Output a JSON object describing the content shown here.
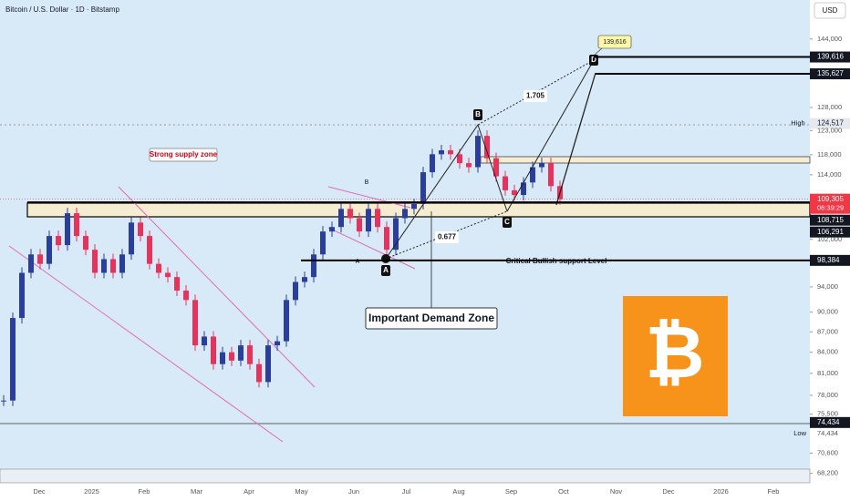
{
  "chart_data": {
    "type": "candlestick",
    "title": "Bitcoin / U.S. Dollar · 1D · Bitstamp",
    "currency": "USD",
    "log_scale": true,
    "ylim": [
      67100,
      154000
    ],
    "yticks": [
      {
        "value": 144000,
        "label": "144,000"
      },
      {
        "value": 128000,
        "label": "128,000"
      },
      {
        "value": 123000,
        "label": "123,000"
      },
      {
        "value": 118000,
        "label": "118,000"
      },
      {
        "value": 114000,
        "label": "114,000"
      },
      {
        "value": 102000,
        "label": "102,000"
      },
      {
        "value": 94000,
        "label": "94,000"
      },
      {
        "value": 90000,
        "label": "90,000"
      },
      {
        "value": 87000,
        "label": "87,000"
      },
      {
        "value": 84000,
        "label": "84,000"
      },
      {
        "value": 81000,
        "label": "81,000"
      },
      {
        "value": 78000,
        "label": "78,000"
      },
      {
        "value": 75500,
        "label": "75,500"
      },
      {
        "value": 70600,
        "label": "70,600"
      },
      {
        "value": 68200,
        "label": "68,200"
      }
    ],
    "price_labels": [
      {
        "value": 139616,
        "label": "139,616",
        "color": "#131722"
      },
      {
        "value": 135627,
        "label": "135,627",
        "color": "#131722"
      },
      {
        "value": 124517,
        "label": "124,517",
        "color": "#e6e9ef"
      },
      {
        "value": 109305,
        "label": "109,305",
        "color": "#f23645"
      },
      {
        "value": 108715,
        "label": "108,715",
        "color": "#131722"
      },
      {
        "value": 106291,
        "label": "106,291",
        "color": "#131722"
      },
      {
        "value": 98384,
        "label": "98,384",
        "color": "#131722"
      },
      {
        "value": 74434,
        "label": "74,434",
        "color": "#131722"
      }
    ],
    "countdown": "06:39:29",
    "high_label": "High",
    "low_label": "Low",
    "xtick_labels": [
      "Dec",
      "2025",
      "Feb",
      "Mar",
      "Apr",
      "May",
      "Jun",
      "Jul",
      "Aug",
      "Sep",
      "Oct",
      "Nov",
      "Dec",
      "2026",
      "Feb"
    ],
    "close": [
      77300,
      89100,
      96300,
      99400,
      97800,
      102600,
      101000,
      106700,
      102600,
      100200,
      96300,
      98600,
      96300,
      99400,
      105000,
      102600,
      97800,
      96300,
      95600,
      93400,
      91900,
      85000,
      86300,
      82300,
      84000,
      82800,
      85000,
      82300,
      79800,
      85000,
      85600,
      91900,
      94800,
      95600,
      99400,
      103400,
      104200,
      107500,
      105800,
      103400,
      107500,
      104200,
      100200,
      105800,
      107500,
      108400,
      114500,
      118100,
      118900,
      118100,
      116300,
      115500,
      121900,
      117300,
      113700,
      111000,
      110100,
      112500,
      115500,
      116300,
      111800,
      109305
    ],
    "up_color": "#2a3f9d",
    "down_color": "#e8315b",
    "annotations": {
      "supply": "Strong supply zone",
      "demand": "Important Demand Zone",
      "support": "Critical Bullish support Level",
      "fib_upper": "1.705",
      "fib_lower": "0.677",
      "points": [
        "A",
        "B",
        "C",
        "D"
      ],
      "minor_points": [
        "A",
        "B"
      ]
    }
  }
}
